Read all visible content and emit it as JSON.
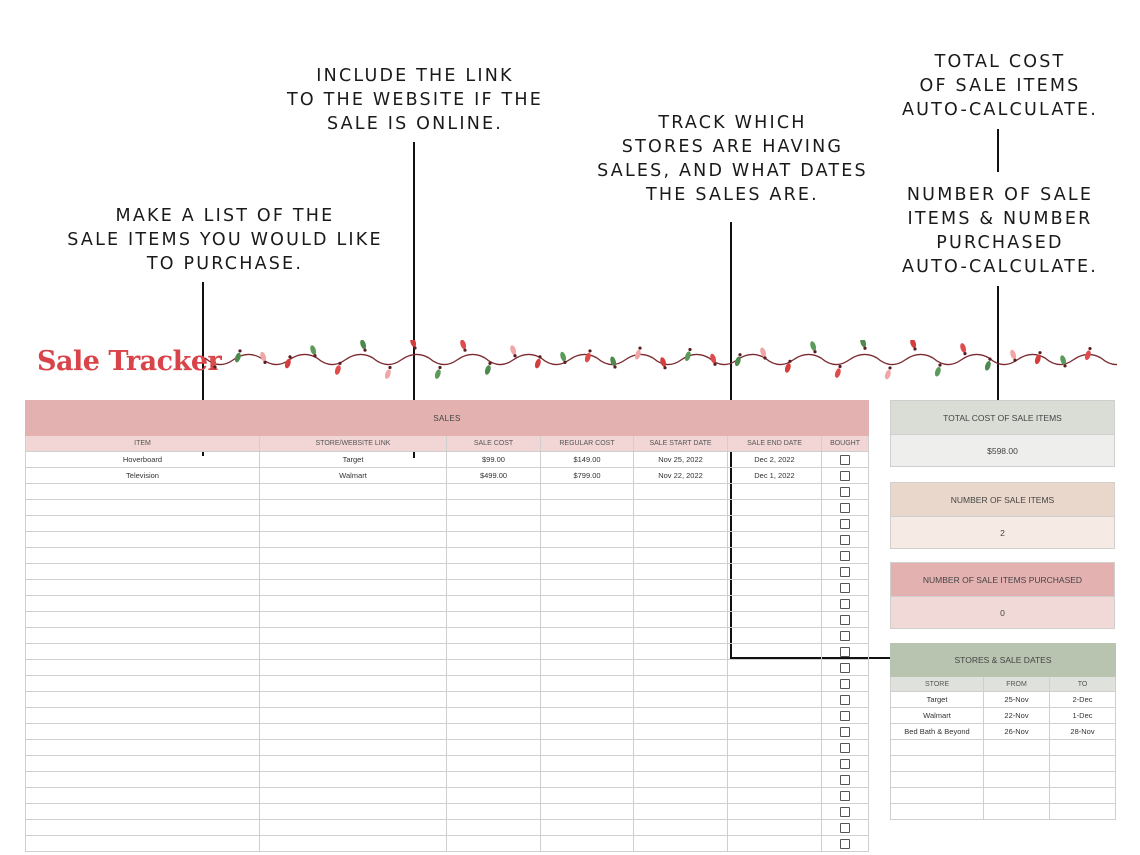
{
  "callouts": {
    "list": [
      "MAKE A LIST OF THE",
      "SALE ITEMS YOU WOULD LIKE",
      "TO PURCHASE."
    ],
    "link": [
      "INCLUDE THE LINK",
      "TO THE WEBSITE IF THE",
      "SALE IS ONLINE."
    ],
    "stores": [
      "TRACK WHICH",
      "STORES ARE HAVING",
      "SALES, AND WHAT DATES",
      "THE SALES ARE."
    ],
    "total": [
      "TOTAL COST",
      "OF SALE ITEMS",
      "AUTO-CALCULATE."
    ],
    "count": [
      "NUMBER OF SALE",
      "ITEMS & NUMBER",
      "PURCHASED",
      "AUTO-CALCULATE."
    ]
  },
  "title": "Sale Tracker",
  "sales": {
    "header": "SALES",
    "columns": [
      "ITEM",
      "STORE/WEBSITE LINK",
      "SALE COST",
      "REGULAR COST",
      "SALE START DATE",
      "SALE END DATE",
      "BOUGHT"
    ],
    "rows": [
      [
        "Hoverboard",
        "Target",
        "$99.00",
        "$149.00",
        "Nov 25, 2022",
        "Dec 2, 2022"
      ],
      [
        "Television",
        "Walmart",
        "$499.00",
        "$799.00",
        "Nov 22, 2022",
        "Dec 1, 2022"
      ]
    ],
    "row_count": 25
  },
  "summary": {
    "total_cost_label": "TOTAL COST OF SALE ITEMS",
    "total_cost_value": "$598.00",
    "num_items_label": "NUMBER OF SALE ITEMS",
    "num_items_value": "2",
    "num_purchased_label": "NUMBER OF SALE ITEMS PURCHASED",
    "num_purchased_value": "0"
  },
  "stores": {
    "header": "STORES & SALE DATES",
    "columns": [
      "STORE",
      "FROM",
      "TO"
    ],
    "rows": [
      [
        "Target",
        "25-Nov",
        "2-Dec"
      ],
      [
        "Walmart",
        "22-Nov",
        "1-Dec"
      ],
      [
        "Bed Bath & Beyond",
        "26-Nov",
        "28-Nov"
      ]
    ],
    "row_count": 8
  },
  "colors": {
    "title": "#d9434a",
    "sales_header": "#e4b1b1",
    "total_header": "#dadcd6",
    "total_value": "#eeefec",
    "items_header": "#ead7cb",
    "items_value": "#f5ebe4",
    "purchased_header": "#e4b1b1",
    "purchased_value": "#f0d9d7",
    "stores_header": "#b8c3b0"
  }
}
